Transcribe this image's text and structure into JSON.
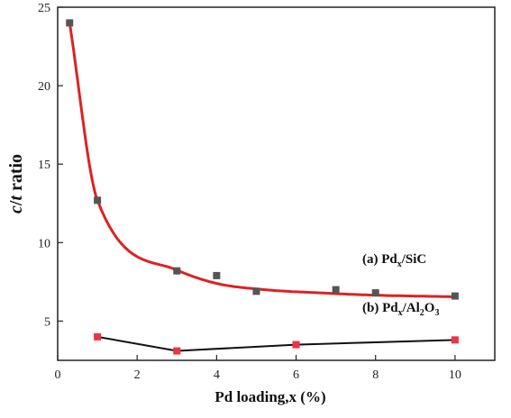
{
  "chart_data": {
    "type": "scatter",
    "xlabel": "Pd loading,x (%)",
    "ylabel_italic_1": "c",
    "ylabel_sep": "/",
    "ylabel_italic_2": "t",
    "ylabel_rest": " ratio",
    "xlim": [
      0,
      11
    ],
    "ylim": [
      2.5,
      25
    ],
    "xticks": [
      0,
      2,
      4,
      6,
      8,
      10
    ],
    "yticks": [
      5,
      10,
      15,
      20,
      25
    ],
    "grid": false,
    "series": [
      {
        "label_prefix": "(a) Pd",
        "label_sub1": "x",
        "label_mid": "/SiC",
        "label_sub2": "",
        "label_end": "",
        "marker_color": "#555555",
        "line_color": "#dd2222",
        "line_style": "fitted curve",
        "x": [
          0.3,
          1,
          3,
          4,
          5,
          7,
          8,
          10
        ],
        "y": [
          24.0,
          12.7,
          8.2,
          7.9,
          6.9,
          7.0,
          6.8,
          6.6
        ]
      },
      {
        "label_prefix": "(b) Pd",
        "label_sub1": "x",
        "label_mid": "/Al",
        "label_sub2": "2",
        "label_end": "O",
        "label_sub3": "3",
        "marker_color": "#ee3344",
        "line_color": "#111111",
        "line_style": "connected",
        "x": [
          1,
          3,
          6,
          10
        ],
        "y": [
          4.0,
          3.1,
          3.5,
          3.8
        ]
      }
    ]
  }
}
